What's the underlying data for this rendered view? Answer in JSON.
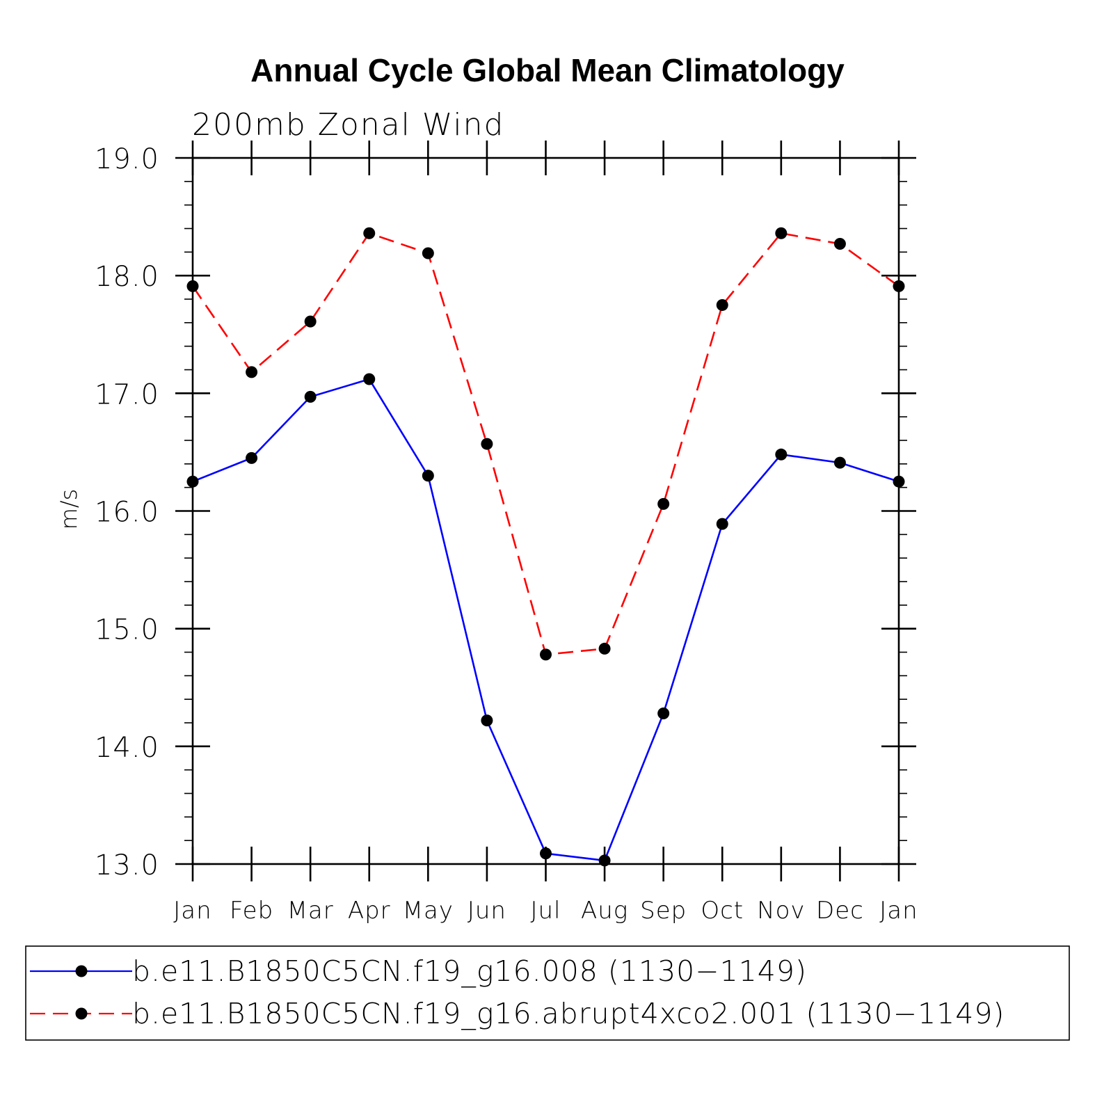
{
  "chart_data": {
    "type": "line",
    "title": "Annual Cycle Global Mean Climatology",
    "subtitle": "200mb Zonal Wind",
    "xlabel": "",
    "ylabel": "m/s",
    "categories": [
      "Jan",
      "Feb",
      "Mar",
      "Apr",
      "May",
      "Jun",
      "Jul",
      "Aug",
      "Sep",
      "Oct",
      "Nov",
      "Dec",
      "Jan"
    ],
    "ylim": [
      13.0,
      19.0
    ],
    "yticks": [
      "13.0",
      "14.0",
      "15.0",
      "16.0",
      "17.0",
      "18.0",
      "19.0"
    ],
    "yminor_step": 0.2,
    "grid": false,
    "legend_position": "bottom",
    "series": [
      {
        "name": "b.e11.B1850C5CN.f19_g16.008 (1130−1149)",
        "color": "#0000ff",
        "dash": "solid",
        "marker": "filled-circle",
        "values": [
          16.25,
          16.45,
          16.97,
          17.12,
          16.3,
          14.22,
          13.09,
          13.03,
          14.28,
          15.89,
          16.48,
          16.41,
          16.25
        ]
      },
      {
        "name": "b.e11.B1850C5CN.f19_g16.abrupt4xco2.001 (1130−1149)",
        "color": "#ff0000",
        "dash": "dashed",
        "marker": "filled-circle",
        "values": [
          17.91,
          17.18,
          17.61,
          18.36,
          18.19,
          16.57,
          14.78,
          14.83,
          16.06,
          17.75,
          18.36,
          18.27,
          17.91
        ]
      }
    ]
  }
}
